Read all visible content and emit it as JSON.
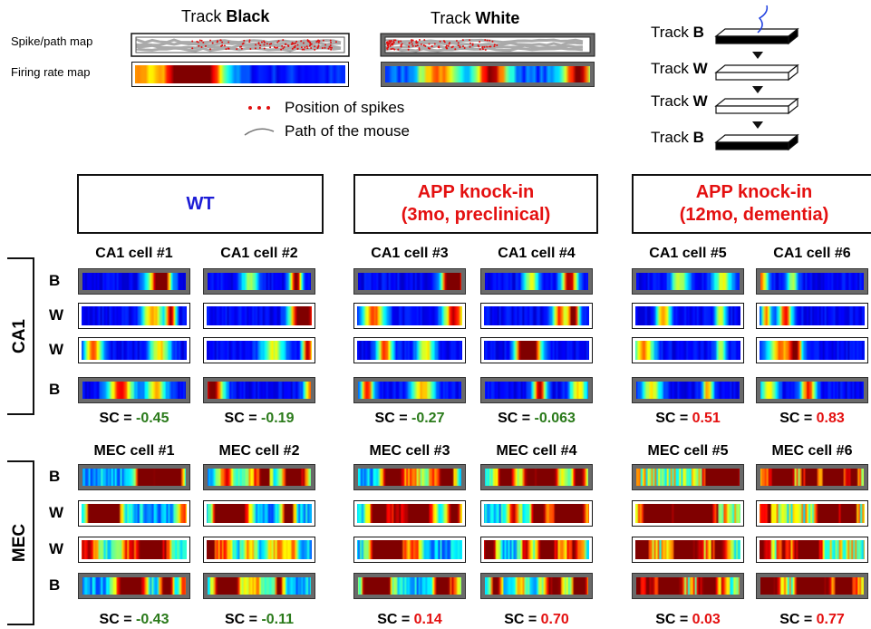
{
  "top": {
    "spike_path_label": "Spike/path map",
    "firing_label": "Firing rate map",
    "track_black": {
      "prefix": "Track",
      "name": "Black"
    },
    "track_white": {
      "prefix": "Track",
      "name": "White"
    },
    "spikes_legend": "Position of spikes",
    "path_legend": "Path of the mouse"
  },
  "protocol": [
    {
      "prefix": "Track",
      "name": "B"
    },
    {
      "prefix": "Track",
      "name": "W"
    },
    {
      "prefix": "Track",
      "name": "W"
    },
    {
      "prefix": "Track",
      "name": "B"
    }
  ],
  "groups": [
    {
      "label": [
        "WT"
      ],
      "color": "#1c1cd6"
    },
    {
      "label": [
        "APP knock-in",
        "(3mo, preclinical)"
      ],
      "color": "#e41010"
    },
    {
      "label": [
        "APP knock-in",
        "(12mo, dementia)"
      ],
      "color": "#e41010"
    }
  ],
  "regions": [
    {
      "name": "CA1",
      "rows": [
        "B",
        "W",
        "W",
        "B"
      ],
      "cells": [
        {
          "title": "CA1 cell #1",
          "sc_prefix": "SC =",
          "sc": "-0.45",
          "sc_color": "#2a7a1a"
        },
        {
          "title": "CA1 cell #2",
          "sc_prefix": "SC =",
          "sc": "-0.19",
          "sc_color": "#2a7a1a"
        },
        {
          "title": "CA1 cell #3",
          "sc_prefix": "SC =",
          "sc": "-0.27",
          "sc_color": "#2a7a1a"
        },
        {
          "title": "CA1 cell #4",
          "sc_prefix": "SC =",
          "sc": "-0.063",
          "sc_color": "#2a7a1a"
        },
        {
          "title": "CA1 cell #5",
          "sc_prefix": "SC =",
          "sc": "0.51",
          "sc_color": "#e41010"
        },
        {
          "title": "CA1 cell #6",
          "sc_prefix": "SC =",
          "sc": "0.83",
          "sc_color": "#e41010"
        }
      ]
    },
    {
      "name": "MEC",
      "rows": [
        "B",
        "W",
        "W",
        "B"
      ],
      "cells": [
        {
          "title": "MEC cell #1",
          "sc_prefix": "SC =",
          "sc": "-0.43",
          "sc_color": "#2a7a1a"
        },
        {
          "title": "MEC cell #2",
          "sc_prefix": "SC =",
          "sc": "-0.11",
          "sc_color": "#2a7a1a"
        },
        {
          "title": "MEC cell #3",
          "sc_prefix": "SC =",
          "sc": "0.14",
          "sc_color": "#e41010"
        },
        {
          "title": "MEC cell #4",
          "sc_prefix": "SC =",
          "sc": "0.70",
          "sc_color": "#e41010"
        },
        {
          "title": "MEC cell #5",
          "sc_prefix": "SC =",
          "sc": "0.03",
          "sc_color": "#e41010"
        },
        {
          "title": "MEC cell #6",
          "sc_prefix": "SC =",
          "sc": "0.77",
          "sc_color": "#e41010"
        }
      ]
    }
  ]
}
